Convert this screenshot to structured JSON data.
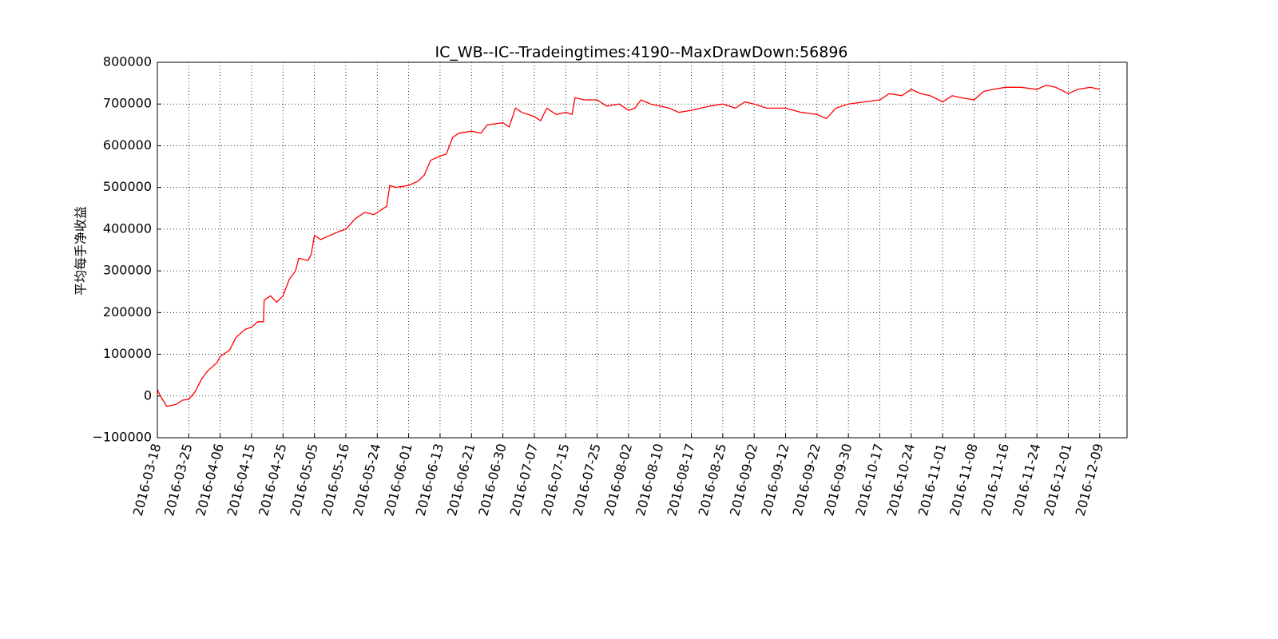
{
  "chart_data": {
    "type": "line",
    "title": "IC_WB--IC--Tradeingtimes:4190--MaxDrawDown:56896",
    "y_label": "平均每手净收益",
    "grid": true,
    "series": [
      {
        "color": "#ff0000",
        "x": [
          0,
          0.1,
          0.3,
          0.6,
          0.8,
          1.0,
          1.2,
          1.4,
          1.6,
          1.9,
          2.0,
          2.3,
          2.5,
          2.8,
          3.0,
          3.2,
          3.38,
          3.4,
          3.6,
          3.8,
          4.0,
          4.2,
          4.4,
          4.5,
          4.8,
          4.9,
          5.0,
          5.2,
          5.5,
          5.8,
          6.0,
          6.3,
          6.6,
          6.9,
          7.0,
          7.3,
          7.4,
          7.6,
          8.0,
          8.3,
          8.5,
          8.7,
          9.0,
          9.2,
          9.4,
          9.6,
          10.0,
          10.3,
          10.5,
          11.0,
          11.2,
          11.4,
          11.6,
          12.0,
          12.2,
          12.4,
          12.7,
          13.0,
          13.2,
          13.3,
          13.6,
          14.0,
          14.3,
          14.7,
          15.0,
          15.2,
          15.4,
          15.7,
          16.0,
          16.3,
          16.6,
          17.0,
          17.3,
          17.6,
          18.0,
          18.4,
          18.7,
          19.0,
          19.4,
          19.7,
          20.0,
          20.5,
          21.0,
          21.3,
          21.6,
          22.0,
          22.5,
          23.0,
          23.3,
          23.7,
          24.0,
          24.3,
          24.6,
          25.0,
          25.3,
          25.6,
          26.0,
          26.3,
          26.6,
          27.0,
          27.5,
          28.0,
          28.3,
          28.6,
          29.0,
          29.3,
          29.7,
          30.0
        ],
        "values": [
          15000,
          0,
          -25000,
          -20000,
          -10000,
          -8000,
          10000,
          40000,
          60000,
          80000,
          95000,
          110000,
          140000,
          160000,
          165000,
          178000,
          178000,
          230000,
          240000,
          225000,
          240000,
          280000,
          300000,
          330000,
          325000,
          340000,
          385000,
          375000,
          385000,
          395000,
          400000,
          425000,
          440000,
          435000,
          440000,
          455000,
          505000,
          500000,
          505000,
          515000,
          530000,
          565000,
          575000,
          580000,
          620000,
          630000,
          635000,
          630000,
          650000,
          655000,
          645000,
          690000,
          680000,
          670000,
          660000,
          690000,
          675000,
          680000,
          675000,
          715000,
          710000,
          710000,
          695000,
          700000,
          685000,
          690000,
          710000,
          700000,
          695000,
          690000,
          680000,
          685000,
          690000,
          695000,
          700000,
          690000,
          705000,
          700000,
          690000,
          690000,
          690000,
          680000,
          675000,
          665000,
          690000,
          700000,
          705000,
          710000,
          725000,
          720000,
          735000,
          725000,
          720000,
          705000,
          720000,
          715000,
          710000,
          730000,
          735000,
          740000,
          740000,
          735000,
          745000,
          740000,
          725000,
          735000,
          740000,
          735000
        ]
      }
    ],
    "xlim": [
      0,
      30.87
    ],
    "xticks": [
      {
        "value": 0,
        "label": "2016-03-18"
      },
      {
        "value": 1,
        "label": "2016-03-25"
      },
      {
        "value": 2,
        "label": "2016-04-06"
      },
      {
        "value": 3,
        "label": "2016-04-15"
      },
      {
        "value": 4,
        "label": "2016-04-25"
      },
      {
        "value": 5,
        "label": "2016-05-05"
      },
      {
        "value": 6,
        "label": "2016-05-16"
      },
      {
        "value": 7,
        "label": "2016-05-24"
      },
      {
        "value": 8,
        "label": "2016-06-01"
      },
      {
        "value": 9,
        "label": "2016-06-13"
      },
      {
        "value": 10,
        "label": "2016-06-21"
      },
      {
        "value": 11,
        "label": "2016-06-30"
      },
      {
        "value": 12,
        "label": "2016-07-07"
      },
      {
        "value": 13,
        "label": "2016-07-15"
      },
      {
        "value": 14,
        "label": "2016-07-25"
      },
      {
        "value": 15,
        "label": "2016-08-02"
      },
      {
        "value": 16,
        "label": "2016-08-10"
      },
      {
        "value": 17,
        "label": "2016-08-17"
      },
      {
        "value": 18,
        "label": "2016-08-25"
      },
      {
        "value": 19,
        "label": "2016-09-02"
      },
      {
        "value": 20,
        "label": "2016-09-12"
      },
      {
        "value": 21,
        "label": "2016-09-22"
      },
      {
        "value": 22,
        "label": "2016-09-30"
      },
      {
        "value": 23,
        "label": "2016-10-17"
      },
      {
        "value": 24,
        "label": "2016-10-24"
      },
      {
        "value": 25,
        "label": "2016-11-01"
      },
      {
        "value": 26,
        "label": "2016-11-08"
      },
      {
        "value": 27,
        "label": "2016-11-16"
      },
      {
        "value": 28,
        "label": "2016-11-24"
      },
      {
        "value": 29,
        "label": "2016-12-01"
      },
      {
        "value": 30,
        "label": "2016-12-09"
      }
    ],
    "ylim": [
      -100000,
      800000
    ],
    "yticks": [
      {
        "value": -100000,
        "label": "−100000"
      },
      0,
      100000,
      200000,
      300000,
      400000,
      500000,
      600000,
      700000,
      800000
    ]
  }
}
